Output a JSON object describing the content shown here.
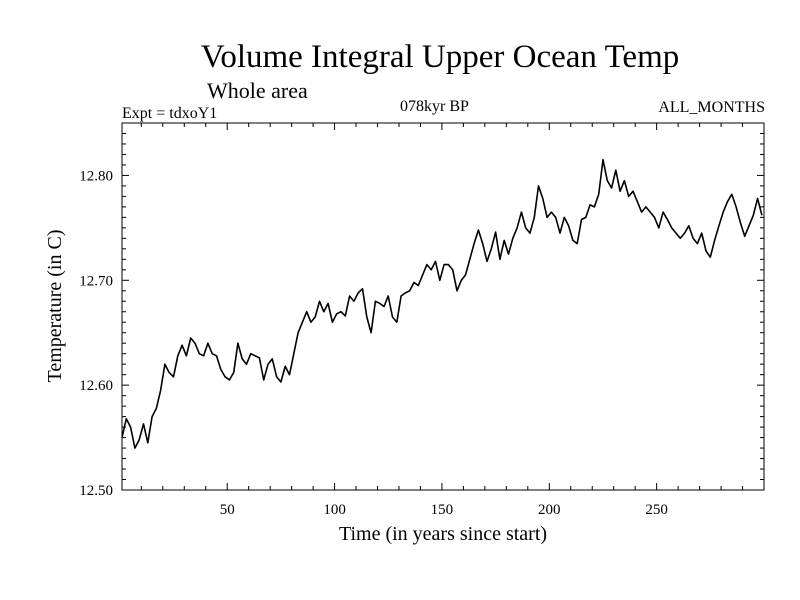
{
  "chart_data": {
    "type": "line",
    "title": "Volume Integral Upper Ocean Temp",
    "subtitle": "Whole area",
    "experiment_label": "Expt = tdxoY1",
    "period_label": "078kyr BP",
    "months_label": "ALL_MONTHS",
    "xlabel": "Time (in years since start)",
    "ylabel": "Temperature (in C)",
    "xlim": [
      1,
      300
    ],
    "ylim": [
      12.5,
      12.85
    ],
    "x_ticks": [
      50,
      100,
      150,
      200,
      250
    ],
    "x_tick_labels": [
      "50",
      "100",
      "150",
      "200",
      "250"
    ],
    "y_ticks": [
      12.5,
      12.6,
      12.7,
      12.8
    ],
    "y_tick_labels": [
      "12.50",
      "12.60",
      "12.70",
      "12.80"
    ],
    "grid": false,
    "series": [
      {
        "name": "Temperature",
        "color": "#000000",
        "x": [
          1,
          3,
          5,
          7,
          9,
          11,
          13,
          15,
          17,
          19,
          21,
          23,
          25,
          27,
          29,
          31,
          33,
          35,
          37,
          39,
          41,
          43,
          45,
          47,
          49,
          51,
          53,
          55,
          57,
          59,
          61,
          63,
          65,
          67,
          69,
          71,
          73,
          75,
          77,
          79,
          81,
          83,
          85,
          87,
          89,
          91,
          93,
          95,
          97,
          99,
          101,
          103,
          105,
          107,
          109,
          111,
          113,
          115,
          117,
          119,
          121,
          123,
          125,
          127,
          129,
          131,
          133,
          135,
          137,
          139,
          141,
          143,
          145,
          147,
          149,
          151,
          153,
          155,
          157,
          159,
          161,
          163,
          165,
          167,
          169,
          171,
          173,
          175,
          177,
          179,
          181,
          183,
          185,
          187,
          189,
          191,
          193,
          195,
          197,
          199,
          201,
          203,
          205,
          207,
          209,
          211,
          213,
          215,
          217,
          219,
          221,
          223,
          225,
          227,
          229,
          231,
          233,
          235,
          237,
          239,
          241,
          243,
          245,
          247,
          249,
          251,
          253,
          255,
          257,
          259,
          261,
          263,
          265,
          267,
          269,
          271,
          273,
          275,
          277,
          279,
          281,
          283,
          285,
          287,
          289,
          291,
          293,
          295,
          297,
          299
        ],
        "values": [
          12.55,
          12.568,
          12.56,
          12.54,
          12.548,
          12.563,
          12.545,
          12.57,
          12.578,
          12.595,
          12.62,
          12.612,
          12.608,
          12.628,
          12.638,
          12.628,
          12.645,
          12.64,
          12.63,
          12.628,
          12.64,
          12.63,
          12.628,
          12.615,
          12.608,
          12.605,
          12.612,
          12.64,
          12.625,
          12.62,
          12.63,
          12.628,
          12.626,
          12.605,
          12.62,
          12.625,
          12.608,
          12.603,
          12.618,
          12.61,
          12.63,
          12.65,
          12.66,
          12.67,
          12.66,
          12.665,
          12.68,
          12.67,
          12.678,
          12.66,
          12.668,
          12.67,
          12.666,
          12.685,
          12.68,
          12.688,
          12.692,
          12.665,
          12.65,
          12.68,
          12.678,
          12.675,
          12.685,
          12.665,
          12.66,
          12.685,
          12.688,
          12.69,
          12.698,
          12.695,
          12.705,
          12.715,
          12.71,
          12.718,
          12.7,
          12.715,
          12.715,
          12.71,
          12.69,
          12.7,
          12.705,
          12.72,
          12.735,
          12.748,
          12.735,
          12.718,
          12.73,
          12.746,
          12.72,
          12.738,
          12.725,
          12.74,
          12.75,
          12.765,
          12.75,
          12.745,
          12.76,
          12.79,
          12.778,
          12.76,
          12.765,
          12.76,
          12.745,
          12.76,
          12.752,
          12.738,
          12.735,
          12.758,
          12.76,
          12.772,
          12.77,
          12.782,
          12.815,
          12.795,
          12.788,
          12.805,
          12.785,
          12.795,
          12.78,
          12.785,
          12.775,
          12.765,
          12.77,
          12.765,
          12.76,
          12.75,
          12.765,
          12.758,
          12.75,
          12.745,
          12.74,
          12.745,
          12.752,
          12.74,
          12.735,
          12.745,
          12.728,
          12.722,
          12.738,
          12.752,
          12.765,
          12.775,
          12.782,
          12.77,
          12.755,
          12.742,
          12.752,
          12.762,
          12.778,
          12.762
        ]
      }
    ]
  }
}
